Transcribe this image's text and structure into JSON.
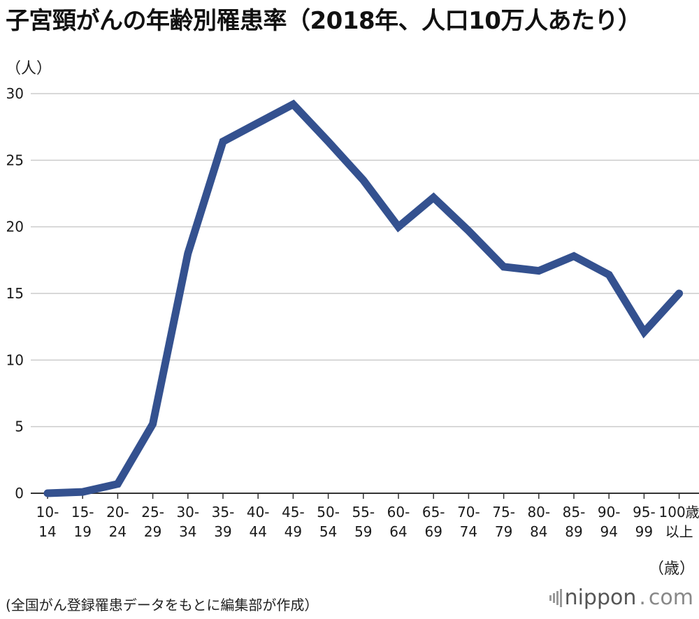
{
  "title": "子宮頸がんの年齢別罹患率（2018年、人口10万人あたり）",
  "source": "(全国がん登録罹患データをもとに編集部が作成）",
  "logo": {
    "name": "nippon",
    "dot": ".",
    "suffix": "com"
  },
  "chart_data": {
    "type": "line",
    "title": "子宮頸がんの年齢別罹患率（2018年、人口10万人あたり）",
    "ylabel": "（人）",
    "xlabel": "（歳）",
    "ylim": [
      0,
      30
    ],
    "yticks": [
      "0",
      "5",
      "10",
      "15",
      "20",
      "25",
      "30"
    ],
    "grid": true,
    "categories": [
      [
        "10-",
        "14"
      ],
      [
        "15-",
        "19"
      ],
      [
        "20-",
        "24"
      ],
      [
        "25-",
        "29"
      ],
      [
        "30-",
        "34"
      ],
      [
        "35-",
        "39"
      ],
      [
        "40-",
        "44"
      ],
      [
        "45-",
        "49"
      ],
      [
        "50-",
        "54"
      ],
      [
        "55-",
        "59"
      ],
      [
        "60-",
        "64"
      ],
      [
        "65-",
        "69"
      ],
      [
        "70-",
        "74"
      ],
      [
        "75-",
        "79"
      ],
      [
        "80-",
        "84"
      ],
      [
        "85-",
        "89"
      ],
      [
        "90-",
        "94"
      ],
      [
        "95-",
        "99"
      ],
      [
        "100歳",
        "以上"
      ]
    ],
    "series": [
      {
        "values": [
          0.0,
          0.1,
          0.7,
          5.2,
          18.0,
          26.4,
          27.8,
          29.2,
          26.4,
          23.5,
          20.0,
          22.2,
          19.7,
          17.0,
          16.7,
          17.8,
          16.4,
          12.1,
          15.0
        ],
        "color": "#34518f"
      }
    ],
    "gridColor": "#cccccc",
    "axisColor": "#333333"
  }
}
